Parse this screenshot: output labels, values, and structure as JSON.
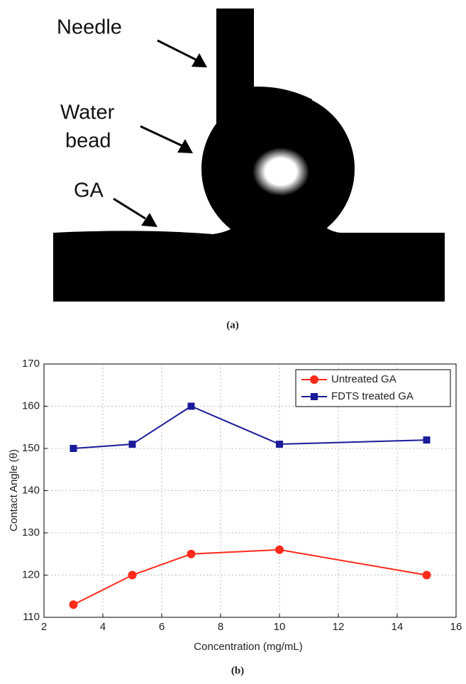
{
  "panel_a": {
    "labels": {
      "needle": "Needle",
      "water_bead": [
        "Water",
        "bead"
      ],
      "ga": "GA"
    },
    "caption": "(a)"
  },
  "chart_data": {
    "type": "line",
    "caption": "(b)",
    "x_label": "Concentration (mg/mL)",
    "y_label": "Contact Angle (θ)",
    "x": [
      3,
      5,
      7,
      10,
      15
    ],
    "series": [
      {
        "name": "Untreated GA",
        "color": "#ff2a1a",
        "marker": "circle",
        "values": [
          113,
          120,
          125,
          126,
          120
        ]
      },
      {
        "name": "FDTS treated GA",
        "color": "#1a1a9a",
        "marker": "square",
        "values": [
          150,
          151,
          160,
          151,
          152
        ]
      }
    ],
    "xlim": [
      2,
      16
    ],
    "xticks": [
      2,
      4,
      6,
      8,
      10,
      12,
      14,
      16
    ],
    "ylim": [
      110,
      170
    ],
    "yticks": [
      110,
      120,
      130,
      140,
      150,
      160,
      170
    ],
    "grid": true,
    "legend": "top-right"
  }
}
